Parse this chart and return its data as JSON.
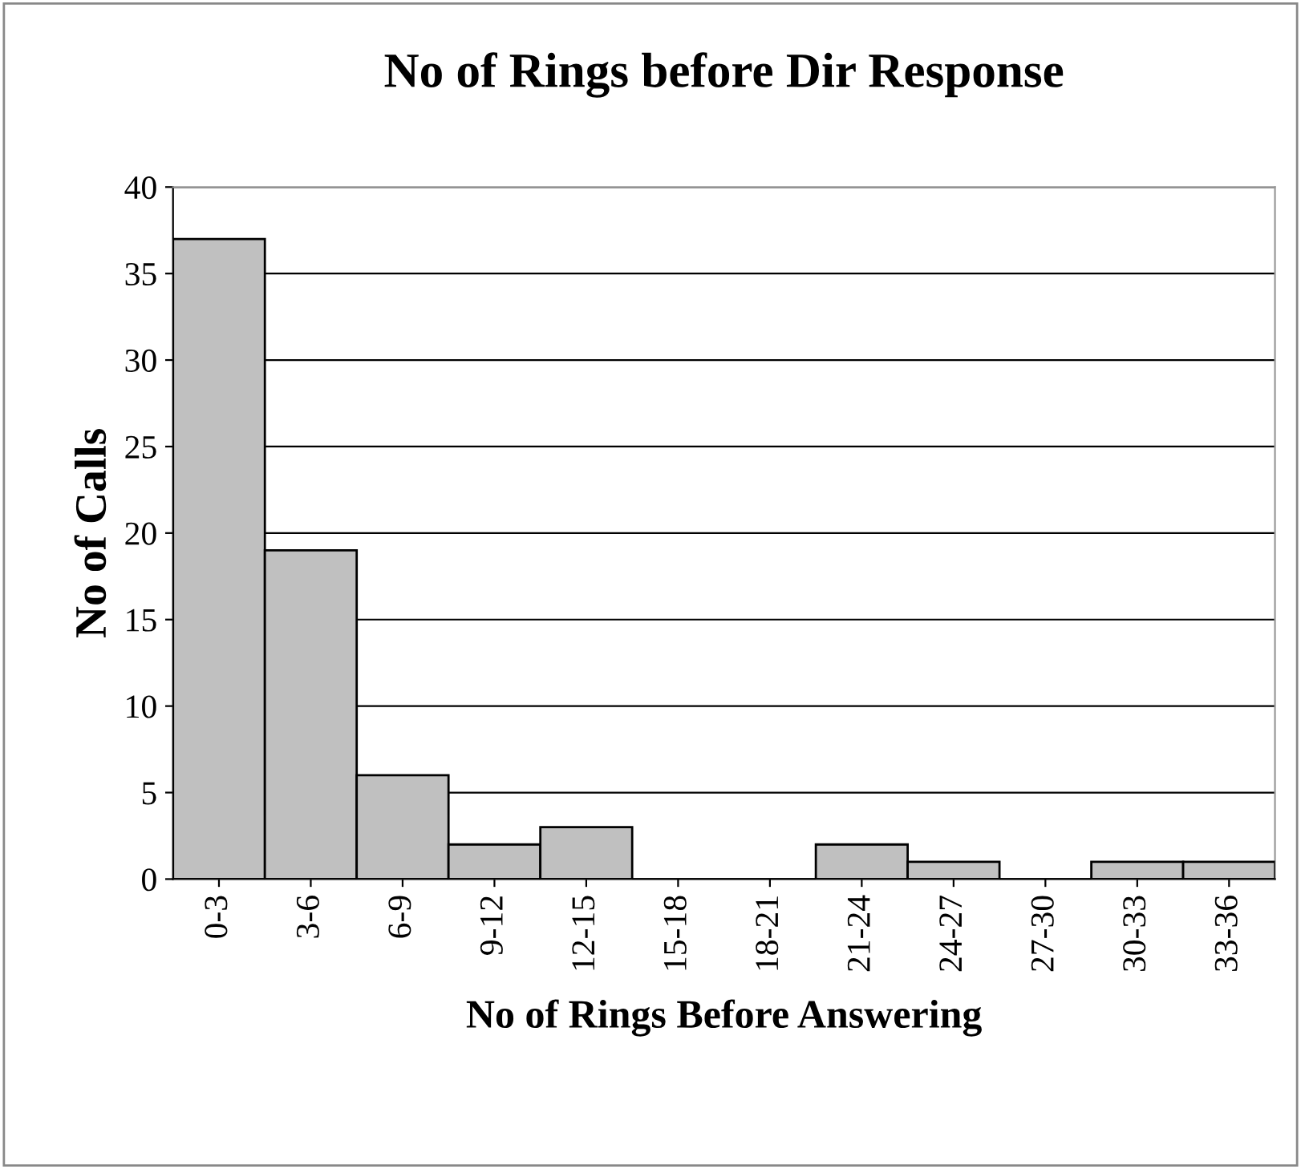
{
  "chart_data": {
    "type": "bar",
    "title": "No of Rings before Dir Response",
    "xlabel": "No of Rings Before Answering",
    "ylabel": "No of Calls",
    "categories": [
      "0-3",
      "3-6",
      "6-9",
      "9-12",
      "12-15",
      "15-18",
      "18-21",
      "21-24",
      "24-27",
      "27-30",
      "30-33",
      "33-36"
    ],
    "values": [
      37,
      19,
      6,
      2,
      3,
      0,
      0,
      2,
      1,
      0,
      1,
      1
    ],
    "color": "#c0c0c0",
    "ylim": [
      0,
      40
    ],
    "yticks": [
      0,
      5,
      10,
      15,
      20,
      25,
      30,
      35,
      40
    ],
    "grid": "y",
    "legend": false
  }
}
